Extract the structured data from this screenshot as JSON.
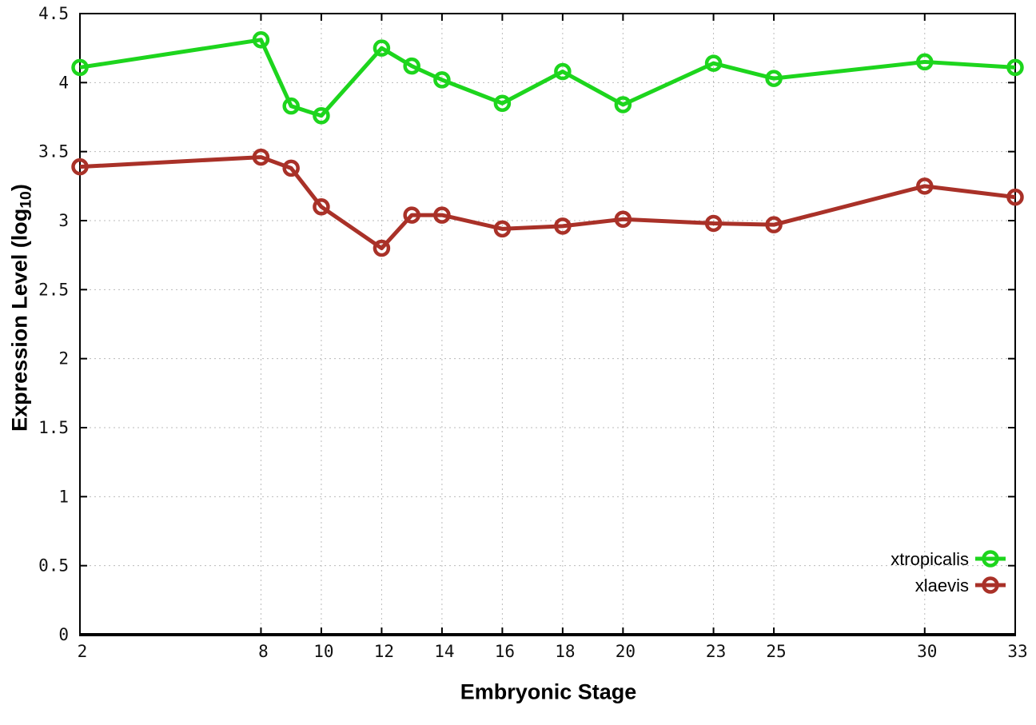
{
  "chart_data": {
    "type": "line",
    "title": "",
    "xlabel": "Embryonic Stage",
    "ylabel": "Expression Level (log10)",
    "ylabel_prefix": "Expression Level (log",
    "ylabel_sub": "10",
    "ylabel_suffix": ")",
    "xlim": [
      2,
      33
    ],
    "ylim": [
      0,
      4.5
    ],
    "xticks": [
      2,
      8,
      10,
      12,
      14,
      16,
      18,
      20,
      23,
      25,
      30,
      33
    ],
    "yticks": [
      0,
      0.5,
      1,
      1.5,
      2,
      2.5,
      3,
      3.5,
      4,
      4.5
    ],
    "grid": true,
    "legend_position": "inside-bottom-right",
    "x": [
      2,
      8,
      9,
      10,
      12,
      13,
      14,
      16,
      18,
      20,
      23,
      25,
      30,
      33
    ],
    "series": [
      {
        "name": "xtropicalis",
        "color": "#1dd51d",
        "values": [
          4.11,
          4.31,
          3.83,
          3.76,
          4.25,
          4.12,
          4.02,
          3.85,
          4.08,
          3.84,
          4.14,
          4.03,
          4.15,
          4.11
        ]
      },
      {
        "name": "xlaevis",
        "color": "#a93128",
        "values": [
          3.39,
          3.46,
          3.38,
          3.1,
          2.8,
          3.04,
          3.04,
          2.94,
          2.96,
          3.01,
          2.98,
          2.97,
          3.25,
          3.17
        ]
      }
    ],
    "styles": {
      "background": "#ffffff",
      "grid_color": "#bbbbbb",
      "border_color": "#000000",
      "tick_label_color": "#111111",
      "line_width": 5,
      "marker_radius": 8.5,
      "marker_stroke_width": 4.5
    }
  }
}
